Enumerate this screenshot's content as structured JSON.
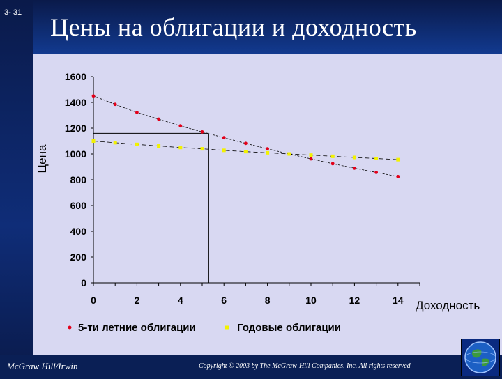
{
  "slide_number": "3- 31",
  "title": "Цены на облигации и доходность",
  "footer": {
    "publisher": "McGraw Hill/Irwin",
    "copyright": "Copyright © 2003 by The McGraw-Hill Companies, Inc. All rights reserved"
  },
  "colors": {
    "series1": "#e2001a",
    "series2": "#f2f200",
    "background": "#0a1f55",
    "plot_area": "#d8d8f2"
  },
  "chart_data": {
    "type": "scatter",
    "title": "",
    "xlabel": "Доходность",
    "ylabel": "Цена",
    "xlim": [
      0,
      15
    ],
    "ylim": [
      0,
      1600
    ],
    "xticks": [
      0,
      2,
      4,
      6,
      8,
      10,
      12,
      14
    ],
    "yticks": [
      0,
      200,
      400,
      600,
      800,
      1000,
      1200,
      1400,
      1600
    ],
    "legend_position": "bottom",
    "x": [
      0,
      1,
      2,
      3,
      4,
      5,
      6,
      7,
      8,
      9,
      10,
      11,
      12,
      13,
      14
    ],
    "series": [
      {
        "name": "5-ти летние облигации",
        "values": [
          1450,
          1385,
          1322,
          1270,
          1218,
          1171,
          1126,
          1082,
          1040,
          1000,
          962,
          925,
          890,
          857,
          825
        ]
      },
      {
        "name": "Годовые облигации",
        "values": [
          1100,
          1087,
          1074,
          1062,
          1050,
          1040,
          1028,
          1018,
          1009,
          1000,
          991,
          982,
          973,
          965,
          956
        ]
      }
    ],
    "reference_lines": {
      "x": 5.3,
      "y": 1160
    }
  }
}
